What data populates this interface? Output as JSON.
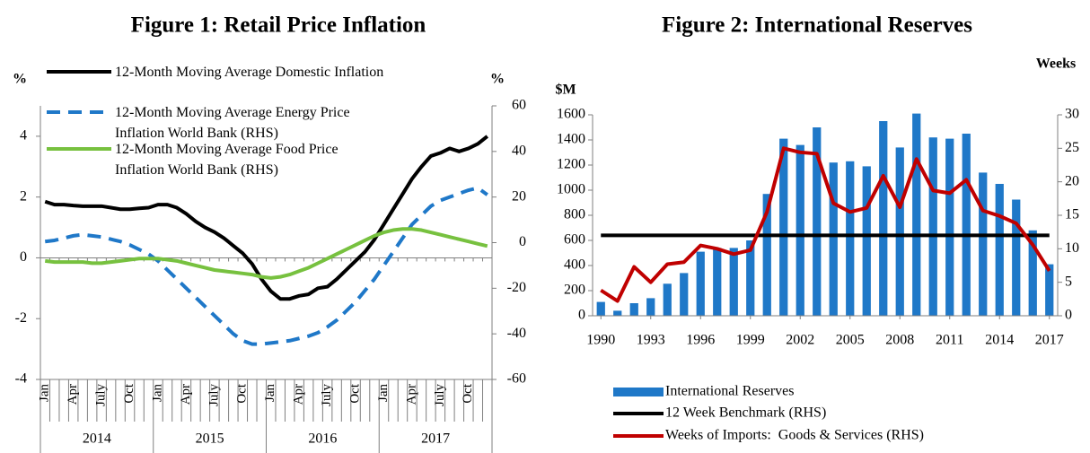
{
  "chart_data": [
    {
      "type": "line",
      "title": "Figure 1: Retail Price Inflation",
      "y_label": "%",
      "y2_label": "%",
      "categories": [
        "Jan",
        null,
        null,
        "Apr",
        null,
        null,
        "July",
        null,
        null,
        "Oct",
        null,
        null,
        "Jan",
        null,
        null,
        "Apr",
        null,
        null,
        "July",
        null,
        null,
        "Oct",
        null,
        null,
        "Jan",
        null,
        null,
        "Apr",
        null,
        null,
        "July",
        null,
        null,
        "Oct",
        null,
        null,
        "Jan",
        null,
        null,
        "Apr",
        null,
        null,
        "July",
        null,
        null,
        "Oct",
        null,
        null
      ],
      "x_groups": [
        "2014",
        "2015",
        "2016",
        "2017"
      ],
      "ylim": [
        -4,
        5
      ],
      "yticks": [
        -4,
        -2,
        0,
        2,
        4
      ],
      "y2lim": [
        -60,
        60
      ],
      "y2ticks": [
        -60,
        -40,
        -20,
        0,
        20,
        40,
        60
      ],
      "series": [
        {
          "name": "12-Month Moving Average Domestic Inflation",
          "color": "#000000",
          "axis": "y",
          "values": [
            1.85,
            1.75,
            1.75,
            1.72,
            1.7,
            1.7,
            1.7,
            1.65,
            1.6,
            1.6,
            1.63,
            1.65,
            1.75,
            1.75,
            1.65,
            1.45,
            1.2,
            1.0,
            0.85,
            0.65,
            0.4,
            0.15,
            -0.2,
            -0.7,
            -1.1,
            -1.35,
            -1.35,
            -1.25,
            -1.2,
            -1.0,
            -0.95,
            -0.7,
            -0.4,
            -0.1,
            0.2,
            0.6,
            1.1,
            1.6,
            2.1,
            2.6,
            3.0,
            3.35,
            3.45,
            3.6,
            3.5,
            3.6,
            3.75,
            4.0
          ]
        },
        {
          "name": "12-Month Moving Average Energy Price Inflation World Bank (RHS)",
          "color": "#1f78c8",
          "axis": "y2",
          "dashed": true,
          "values": [
            0.5,
            1,
            2,
            3,
            3.5,
            3,
            2.5,
            1.5,
            0.5,
            -1,
            -3,
            -5,
            -8,
            -12,
            -16,
            -20,
            -24,
            -28,
            -32,
            -36,
            -40,
            -43,
            -44.5,
            -44.5,
            -44,
            -43.5,
            -43,
            -42,
            -41,
            -39.5,
            -37,
            -34,
            -30,
            -26,
            -21,
            -16,
            -10,
            -4,
            2,
            8,
            12,
            16,
            18.5,
            20,
            21.5,
            23,
            24,
            21
          ]
        },
        {
          "name": "12-Month Moving Average Food Price Inflation World Bank (RHS)",
          "color": "#77c13f",
          "axis": "y2",
          "values": [
            -8,
            -8.5,
            -8.5,
            -8.5,
            -8.5,
            -9,
            -9,
            -8.5,
            -8,
            -7.5,
            -7,
            -7,
            -7,
            -7.5,
            -8,
            -9,
            -10,
            -11,
            -12,
            -12.5,
            -13,
            -13.5,
            -14,
            -15,
            -15.5,
            -15,
            -14,
            -12.5,
            -11,
            -9,
            -7,
            -5,
            -3,
            -1,
            1,
            3,
            4.5,
            5.5,
            6,
            6,
            5.5,
            4.5,
            3.5,
            2.5,
            1.5,
            0.5,
            -0.5,
            -1.5
          ]
        }
      ]
    },
    {
      "type": "combo",
      "title": "Figure 2: International Reserves",
      "y_label": "$M",
      "y2_label": "Weeks",
      "x": [
        1990,
        1991,
        1992,
        1993,
        1994,
        1995,
        1996,
        1997,
        1998,
        1999,
        2000,
        2001,
        2002,
        2003,
        2004,
        2005,
        2006,
        2007,
        2008,
        2009,
        2010,
        2011,
        2012,
        2013,
        2014,
        2015,
        2016,
        2017
      ],
      "xlim": [
        1989.5,
        2017.5
      ],
      "xticks": [
        1990,
        1993,
        1996,
        1999,
        2002,
        2005,
        2008,
        2011,
        2014,
        2017
      ],
      "ylim": [
        0,
        1600
      ],
      "yticks": [
        0,
        200,
        400,
        600,
        800,
        1000,
        1200,
        1400,
        1600
      ],
      "y2lim": [
        0,
        30
      ],
      "y2ticks": [
        0,
        5,
        10,
        15,
        20,
        25,
        30
      ],
      "series": [
        {
          "name": "International Reserves",
          "color": "#1f78c8",
          "axis": "y",
          "kind": "bar",
          "values": [
            110,
            40,
            100,
            140,
            255,
            340,
            510,
            540,
            540,
            600,
            970,
            1410,
            1360,
            1500,
            1220,
            1230,
            1190,
            1550,
            1340,
            1610,
            1420,
            1410,
            1450,
            1140,
            1050,
            925,
            680,
            410
          ]
        },
        {
          "name": "12 Week Benchmark (RHS)",
          "color": "#000000",
          "axis": "y2",
          "kind": "line",
          "values": [
            12,
            12,
            12,
            12,
            12,
            12,
            12,
            12,
            12,
            12,
            12,
            12,
            12,
            12,
            12,
            12,
            12,
            12,
            12,
            12,
            12,
            12,
            12,
            12,
            12,
            12,
            12,
            12
          ]
        },
        {
          "name": "Weeks of Imports:  Goods & Services (RHS)",
          "color": "#c00000",
          "axis": "y2",
          "kind": "line",
          "values": [
            3.8,
            2.2,
            7.3,
            5.0,
            7.7,
            8.0,
            10.5,
            10.0,
            9.2,
            9.8,
            15.5,
            25,
            24.4,
            24.2,
            16.8,
            15.5,
            16.1,
            20.9,
            16.2,
            23.4,
            18.7,
            18.3,
            20.3,
            15.7,
            14.9,
            13.8,
            10.6,
            6.7
          ]
        }
      ]
    }
  ]
}
